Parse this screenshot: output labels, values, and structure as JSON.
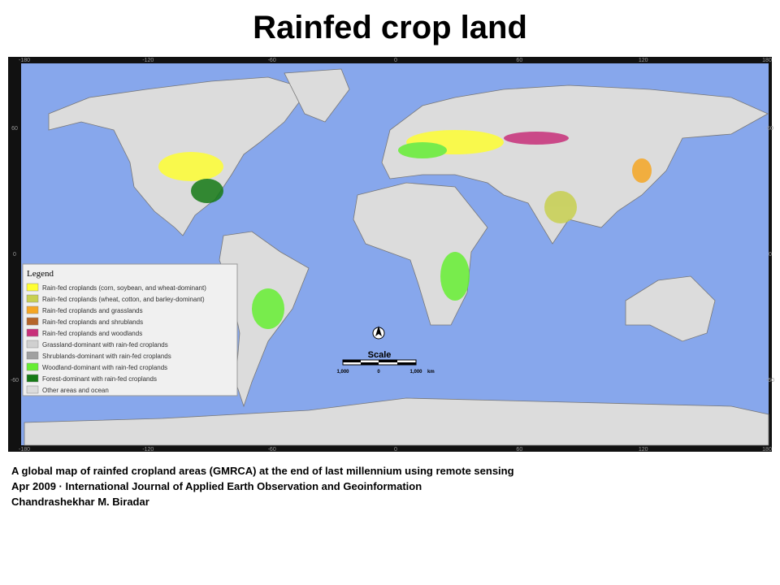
{
  "header": {
    "title": "Rainfed crop land"
  },
  "map": {
    "lon_labels": [
      "-180",
      "-120",
      "-60",
      "0",
      "60",
      "120",
      "180"
    ],
    "lat_labels": [
      "60",
      "0",
      "-60"
    ],
    "legend": {
      "title": "Legend",
      "items": [
        {
          "label": "Rain-fed croplands (corn, soybean, and wheat-dominant)",
          "color": "#ffff33"
        },
        {
          "label": "Rain-fed croplands (wheat, cotton, and barley-dominant)",
          "color": "#c8d050"
        },
        {
          "label": "Rain-fed croplands and grasslands",
          "color": "#f5a623"
        },
        {
          "label": "Rain-fed croplands and shrublands",
          "color": "#b5652a"
        },
        {
          "label": "Rain-fed croplands and woodlands",
          "color": "#c8307a"
        },
        {
          "label": "Grassland-dominant with rain-fed croplands",
          "color": "#d0d0d0"
        },
        {
          "label": "Shrublands-dominant with rain-fed croplands",
          "color": "#a0a0a0"
        },
        {
          "label": "Woodland-dominant with rain-fed croplands",
          "color": "#66ee33"
        },
        {
          "label": "Forest-dominant with rain-fed croplands",
          "color": "#157a15"
        },
        {
          "label": "Other areas and ocean",
          "color": "#dcdcdc"
        }
      ]
    },
    "scale": {
      "title": "Scale",
      "labels": [
        "1,000",
        "0",
        "1,000"
      ],
      "unit": "km"
    }
  },
  "caption": {
    "lines": [
      "A global map of rainfed cropland areas (GMRCA) at the end of last millennium using remote sensing",
      "Apr 2009 · International Journal of Applied Earth Observation and Geoinformation",
      "Chandrashekhar M. Biradar"
    ]
  }
}
